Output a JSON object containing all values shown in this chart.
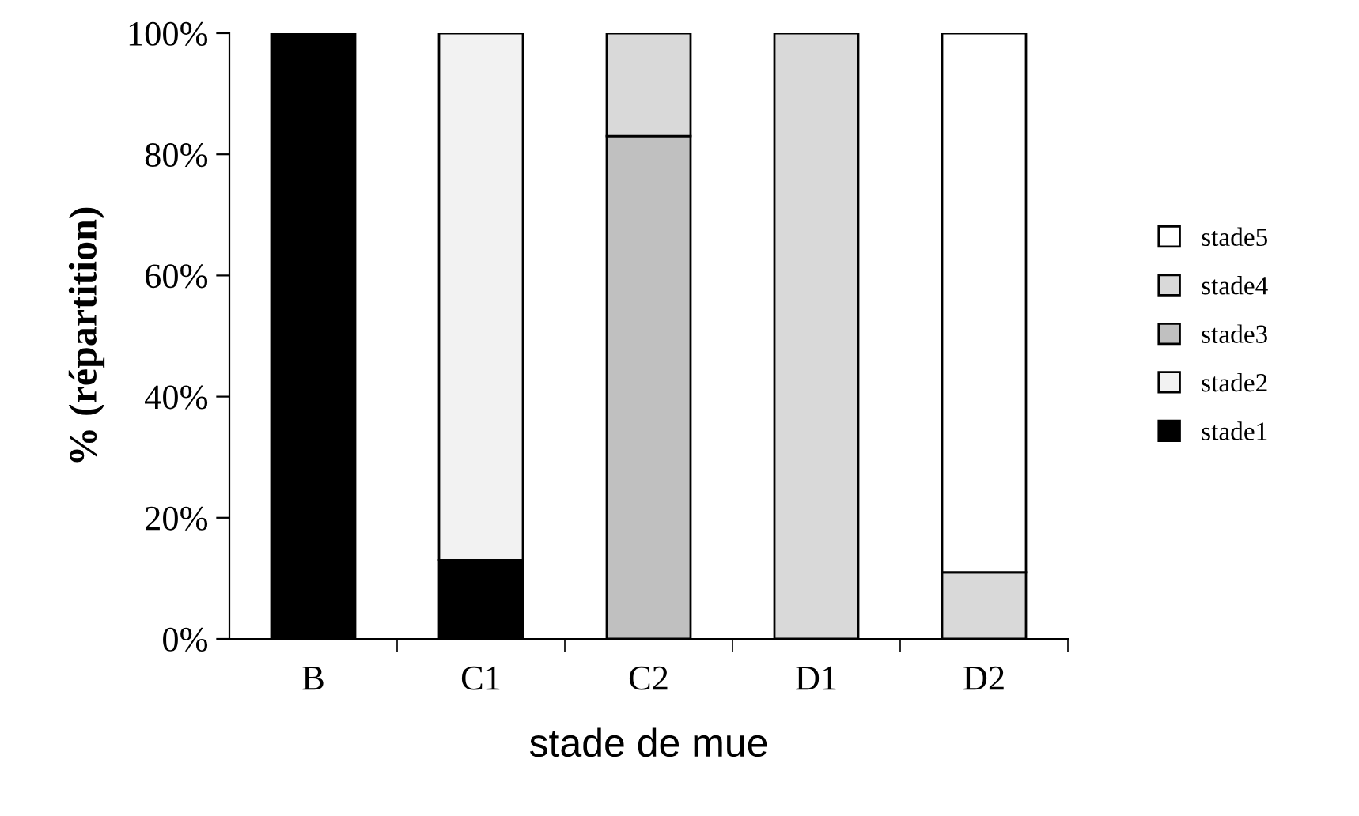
{
  "chart_data": {
    "type": "bar",
    "stacked": true,
    "xlabel": "stade de mue",
    "ylabel": "% (répartition)",
    "categories": [
      "B",
      "C1",
      "C2",
      "D1",
      "D2"
    ],
    "series": [
      {
        "name": "stade1",
        "color": "#000000",
        "values": [
          100,
          13,
          0,
          0,
          0
        ]
      },
      {
        "name": "stade2",
        "color": "#f2f2f2",
        "values": [
          0,
          87,
          0,
          0,
          0
        ]
      },
      {
        "name": "stade3",
        "color": "#c0c0c0",
        "values": [
          0,
          0,
          83,
          0,
          0
        ]
      },
      {
        "name": "stade4",
        "color": "#d9d9d9",
        "values": [
          0,
          0,
          17,
          100,
          11
        ]
      },
      {
        "name": "stade5",
        "color": "#ffffff",
        "values": [
          0,
          0,
          0,
          0,
          89
        ]
      }
    ],
    "ylim": [
      0,
      100
    ],
    "yticks": [
      {
        "value": 0,
        "label": "0%"
      },
      {
        "value": 20,
        "label": "20%"
      },
      {
        "value": 40,
        "label": "40%"
      },
      {
        "value": 60,
        "label": "60%"
      },
      {
        "value": 80,
        "label": "80%"
      },
      {
        "value": 100,
        "label": "100%"
      }
    ],
    "grid": false,
    "legend": "right"
  }
}
